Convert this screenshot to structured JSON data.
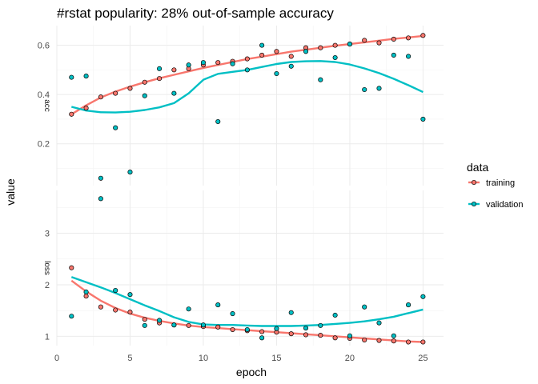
{
  "chart_data": {
    "type": "scatter",
    "title": "#rstat popularity: 28% out-of-sample accuracy",
    "xlabel": "epoch",
    "ylabel": "value",
    "xlim": [
      0,
      26.4
    ],
    "x_ticks": [
      0,
      5,
      10,
      15,
      20,
      25
    ],
    "grid": true,
    "smooth_lines": true,
    "legend": {
      "title": "data",
      "position": "right",
      "entries": [
        {
          "name": "training",
          "color": "#f8766d"
        },
        {
          "name": "validation",
          "color": "#00bfc4"
        }
      ]
    },
    "panels": [
      {
        "strip_label": "acc",
        "ylim": [
          0.03,
          0.68
        ],
        "y_ticks": [
          0.2,
          0.4,
          0.6
        ],
        "y_tick_labels": [
          "0.2",
          "0.4",
          "0.6"
        ],
        "series": [
          {
            "name": "training",
            "color": "#f8766d",
            "x": [
              1,
              2,
              3,
              4,
              5,
              6,
              7,
              8,
              9,
              10,
              11,
              12,
              13,
              14,
              15,
              16,
              17,
              18,
              19,
              20,
              21,
              22,
              23,
              24,
              25
            ],
            "values": [
              0.32,
              0.345,
              0.39,
              0.405,
              0.425,
              0.45,
              0.465,
              0.5,
              0.505,
              0.52,
              0.53,
              0.535,
              0.545,
              0.56,
              0.575,
              0.555,
              0.59,
              0.59,
              0.6,
              0.605,
              0.62,
              0.61,
              0.625,
              0.63,
              0.64
            ],
            "smooth": [
              0.32,
              0.356,
              0.388,
              0.412,
              0.432,
              0.45,
              0.466,
              0.48,
              0.494,
              0.508,
              0.52,
              0.532,
              0.544,
              0.554,
              0.564,
              0.574,
              0.582,
              0.59,
              0.598,
              0.605,
              0.612,
              0.619,
              0.626,
              0.632,
              0.638
            ]
          },
          {
            "name": "validation",
            "color": "#00bfc4",
            "x": [
              1,
              2,
              3,
              4,
              5,
              6,
              7,
              8,
              9,
              10,
              11,
              12,
              13,
              14,
              15,
              16,
              17,
              18,
              19,
              20,
              21,
              22,
              23,
              24,
              25
            ],
            "values": [
              0.47,
              0.475,
              0.06,
              0.265,
              0.085,
              0.395,
              0.505,
              0.405,
              0.52,
              0.53,
              0.29,
              0.525,
              0.5,
              0.6,
              0.485,
              0.515,
              0.575,
              0.46,
              0.55,
              0.605,
              0.42,
              0.425,
              0.56,
              0.555,
              0.3
            ],
            "smooth": [
              0.35,
              0.335,
              0.328,
              0.327,
              0.33,
              0.337,
              0.348,
              0.365,
              0.405,
              0.46,
              0.484,
              0.492,
              0.5,
              0.512,
              0.524,
              0.532,
              0.535,
              0.536,
              0.532,
              0.522,
              0.506,
              0.487,
              0.464,
              0.438,
              0.41
            ]
          }
        ]
      },
      {
        "strip_label": "loss",
        "ylim": [
          0.82,
          3.83
        ],
        "y_ticks": [
          1,
          2,
          3
        ],
        "y_tick_labels": [
          "1",
          "2",
          "3"
        ],
        "series": [
          {
            "name": "training",
            "color": "#f8766d",
            "x": [
              1,
              2,
              3,
              4,
              5,
              6,
              7,
              8,
              9,
              10,
              11,
              12,
              13,
              14,
              15,
              16,
              17,
              18,
              19,
              20,
              21,
              22,
              23,
              24,
              25
            ],
            "values": [
              2.33,
              1.78,
              1.57,
              1.51,
              1.47,
              1.33,
              1.26,
              1.22,
              1.21,
              1.19,
              1.18,
              1.13,
              1.11,
              1.09,
              1.08,
              1.05,
              1.03,
              1.02,
              0.97,
              0.96,
              0.93,
              0.92,
              0.91,
              0.89,
              0.89
            ],
            "smooth": [
              2.08,
              1.87,
              1.69,
              1.55,
              1.44,
              1.36,
              1.3,
              1.25,
              1.21,
              1.18,
              1.16,
              1.14,
              1.12,
              1.1,
              1.08,
              1.06,
              1.04,
              1.02,
              1.0,
              0.98,
              0.96,
              0.94,
              0.92,
              0.9,
              0.89
            ]
          },
          {
            "name": "validation",
            "color": "#00bfc4",
            "x": [
              1,
              2,
              3,
              4,
              5,
              6,
              7,
              8,
              9,
              10,
              11,
              12,
              13,
              14,
              15,
              16,
              17,
              18,
              19,
              20,
              21,
              22,
              23,
              24,
              25
            ],
            "values": [
              1.39,
              1.86,
              3.67,
              1.89,
              1.81,
              1.21,
              1.31,
              1.22,
              1.53,
              1.22,
              1.61,
              1.44,
              1.13,
              0.97,
              1.15,
              1.46,
              1.16,
              1.21,
              1.41,
              1.01,
              1.57,
              1.26,
              1.01,
              1.61,
              1.77
            ],
            "smooth": [
              2.15,
              2.05,
              1.95,
              1.84,
              1.72,
              1.6,
              1.49,
              1.37,
              1.28,
              1.23,
              1.22,
              1.22,
              1.21,
              1.2,
              1.2,
              1.2,
              1.21,
              1.22,
              1.24,
              1.26,
              1.29,
              1.33,
              1.38,
              1.45,
              1.52
            ]
          }
        ]
      }
    ]
  }
}
